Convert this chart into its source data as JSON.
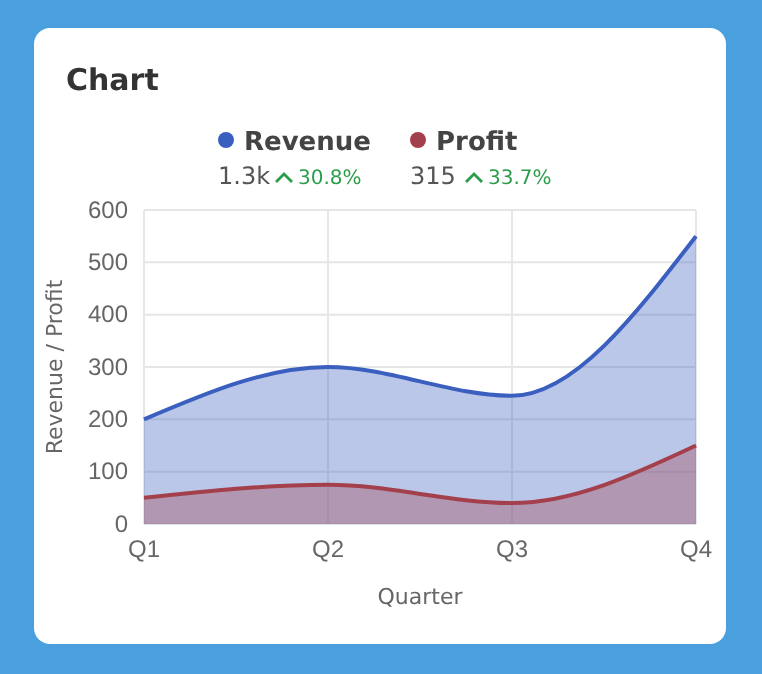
{
  "chart_data": {
    "type": "area",
    "title": "Chart",
    "xlabel": "Quarter",
    "ylabel": "Revenue / Profit",
    "categories": [
      "Q1",
      "Q2",
      "Q3",
      "Q4"
    ],
    "series": [
      {
        "name": "Revenue",
        "color": "#3a5fbf",
        "values": [
          200,
          300,
          245,
          550
        ]
      },
      {
        "name": "Profit",
        "color": "#a3404c",
        "values": [
          50,
          75,
          40,
          150
        ]
      }
    ],
    "annotations": [
      "1.3k",
      "30.8%",
      "315",
      "33.7%"
    ],
    "ylim": [
      0,
      600
    ],
    "yticks": [
      0,
      100,
      200,
      300,
      400,
      500,
      600
    ],
    "grid": true,
    "legend": "top",
    "marker": "none"
  }
}
